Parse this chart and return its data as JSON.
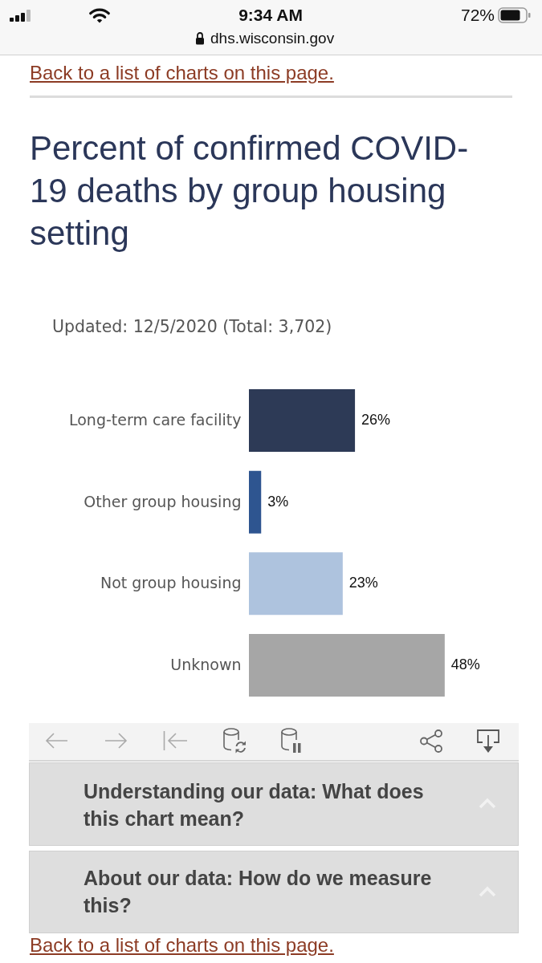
{
  "chart_data": {
    "type": "bar",
    "orientation": "horizontal",
    "title": "Percent of confirmed COVID-19 deaths by group housing setting",
    "subtitle": "Updated: 12/5/2020 (Total: 3,702)",
    "categories": [
      "Long-term care facility",
      "Other group housing",
      "Not group housing",
      "Unknown"
    ],
    "values": [
      26,
      3,
      23,
      48
    ],
    "colors": [
      "#2d3a56",
      "#2e5590",
      "#aec3de",
      "#a6a6a6"
    ],
    "value_labels": [
      "26%",
      "3%",
      "23%",
      "48%"
    ],
    "tick_labels": "y",
    "annotations": [
      "9:34 AM",
      "72%",
      "dhs.wisconsin.gov",
      "Back to a list of charts on this page.",
      "Understanding our data: What does this chart mean?",
      "About our data: How do we measure this?",
      "Back to a list of charts on this page."
    ]
  }
}
